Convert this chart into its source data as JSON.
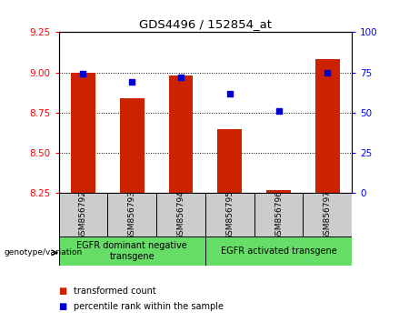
{
  "title": "GDS4496 / 152854_at",
  "samples": [
    "GSM856792",
    "GSM856793",
    "GSM856794",
    "GSM856795",
    "GSM856796",
    "GSM856797"
  ],
  "red_values": [
    9.0,
    8.84,
    8.98,
    8.65,
    8.27,
    9.08
  ],
  "blue_values": [
    74,
    69,
    72,
    62,
    51,
    75
  ],
  "ylim_left": [
    8.25,
    9.25
  ],
  "ylim_right": [
    0,
    100
  ],
  "yticks_left": [
    8.25,
    8.5,
    8.75,
    9.0,
    9.25
  ],
  "yticks_right": [
    0,
    25,
    50,
    75,
    100
  ],
  "bar_color": "#cc2200",
  "scatter_color": "#0000cc",
  "bar_bottom": 8.25,
  "legend_red": "transformed count",
  "legend_blue": "percentile rank within the sample",
  "green_color": "#66dd66",
  "gray_color": "#cccccc",
  "bar_width": 0.5,
  "group1_label": "EGFR dominant negative\ntransgene",
  "group2_label": "EGFR activated transgene",
  "genotype_label": "genotype/variation"
}
